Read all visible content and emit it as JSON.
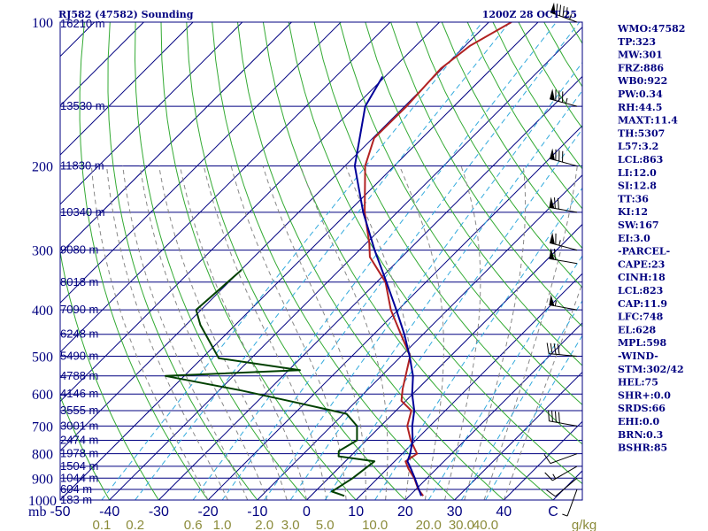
{
  "chart_data": {
    "type": "line",
    "title_left": "RJ582 (47582) Sounding",
    "title_right": "1200Z 28 OCT 25",
    "y_axis": {
      "scale": "log-pressure",
      "range_hPa": [
        1000,
        100
      ],
      "tick_labels": [
        "100",
        "200",
        "300",
        "400",
        "500",
        "600",
        "700",
        "800",
        "900",
        "1000"
      ],
      "unit_label": "mb"
    },
    "x_axis": {
      "temperature_tick_labels": [
        "-50",
        "-40",
        "-30",
        "-20",
        "-10",
        "0",
        "10",
        "20",
        "30",
        "40",
        "C"
      ],
      "mixing_ratio_labels": [
        "0.1",
        "0.2",
        "0.6",
        "1.0",
        "2.0",
        "3.0",
        "5.0",
        "10.0",
        "20.0",
        "30.0",
        "40.0",
        "g/kg"
      ]
    },
    "height_labels": [
      {
        "p": 100,
        "text": "16210 m"
      },
      {
        "p": 150,
        "text": "13530 m"
      },
      {
        "p": 200,
        "text": "11830 m"
      },
      {
        "p": 250,
        "text": "10340 m"
      },
      {
        "p": 300,
        "text": "9080 m"
      },
      {
        "p": 350,
        "text": "8018 m"
      },
      {
        "p": 400,
        "text": "7090 m"
      },
      {
        "p": 450,
        "text": "6248 m"
      },
      {
        "p": 500,
        "text": "5490 m"
      },
      {
        "p": 550,
        "text": "4788 m"
      },
      {
        "p": 600,
        "text": "4146 m"
      },
      {
        "p": 650,
        "text": "3555 m"
      },
      {
        "p": 700,
        "text": "3001 m"
      },
      {
        "p": 750,
        "text": "2474 m"
      },
      {
        "p": 800,
        "text": "1978 m"
      },
      {
        "p": 850,
        "text": "1504 m"
      },
      {
        "p": 900,
        "text": "1044 m"
      },
      {
        "p": 950,
        "text": "604 m"
      },
      {
        "p": 1000,
        "text": "183 m"
      }
    ],
    "series": [
      {
        "key": "temperature",
        "color": "#B22222",
        "points": [
          [
            100,
            -55.4
          ],
          [
            112,
            -59.0
          ],
          [
            125,
            -60.3
          ],
          [
            150,
            -59.6
          ],
          [
            175,
            -59.7
          ],
          [
            200,
            -55.9
          ],
          [
            250,
            -46.6
          ],
          [
            290,
            -39.4
          ],
          [
            310,
            -36.5
          ],
          [
            350,
            -28.2
          ],
          [
            400,
            -21.5
          ],
          [
            450,
            -14.5
          ],
          [
            500,
            -8.2
          ],
          [
            550,
            -5.1
          ],
          [
            585,
            -3.1
          ],
          [
            620,
            -0.9
          ],
          [
            650,
            3.1
          ],
          [
            700,
            5.4
          ],
          [
            750,
            9.0
          ],
          [
            800,
            13.0
          ],
          [
            830,
            12.2
          ],
          [
            860,
            14.3
          ],
          [
            900,
            17.4
          ],
          [
            950,
            20.5
          ],
          [
            980,
            22.8
          ]
        ]
      },
      {
        "key": "dewpoint",
        "color": "#004000",
        "points": [
          [
            330,
            -59.9
          ],
          [
            400,
            -61.0
          ],
          [
            430,
            -57.1
          ],
          [
            505,
            -46.6
          ],
          [
            535,
            -27.7
          ],
          [
            550,
            -53.8
          ],
          [
            590,
            -35.4
          ],
          [
            625,
            -21.9
          ],
          [
            660,
            -9.4
          ],
          [
            700,
            -4.8
          ],
          [
            750,
            -1.9
          ],
          [
            790,
            -3.4
          ],
          [
            810,
            -2.4
          ],
          [
            830,
            5.9
          ],
          [
            900,
            4.9
          ],
          [
            960,
            3.4
          ],
          [
            980,
            6.8
          ]
        ]
      },
      {
        "key": "parcel",
        "color": "#000099",
        "points": [
          [
            130,
            -70.5
          ],
          [
            150,
            -68.0
          ],
          [
            200,
            -58.0
          ],
          [
            250,
            -46.9
          ],
          [
            300,
            -36.9
          ],
          [
            350,
            -28.0
          ],
          [
            400,
            -20.4
          ],
          [
            450,
            -13.8
          ],
          [
            500,
            -8.3
          ],
          [
            550,
            -3.6
          ],
          [
            600,
            -0.1
          ],
          [
            650,
            3.7
          ],
          [
            700,
            6.4
          ],
          [
            750,
            9.4
          ],
          [
            800,
            11.6
          ],
          [
            830,
            12.6
          ],
          [
            860,
            14.8
          ],
          [
            900,
            17.5
          ],
          [
            950,
            20.6
          ],
          [
            980,
            22.4
          ]
        ]
      }
    ],
    "index_panel": [
      "WMO:47582",
      "TP:323",
      "MW:301",
      "FRZ:886",
      "WB0:922",
      "PW:0.34",
      "RH:44.5",
      "MAXT:11.4",
      "TH:5307",
      "L57:3.2",
      "LCL:863",
      "LI:12.0",
      "SI:12.8",
      "TT:36",
      "KI:12",
      "SW:167",
      "EI:3.0",
      "-PARCEL-",
      "CAPE:23",
      "CINH:18",
      "LCL:823",
      "CAP:11.9",
      "LFC:748",
      "EL:628",
      "MPL:598",
      "-WIND-",
      "STM:302/42",
      "HEL:75",
      "SHR+:0.0",
      "SRDS:66",
      "EHI:0.0",
      "BRN:0.3",
      "BSHR:85"
    ],
    "wind_barbs": [
      {
        "p": 100,
        "dir": 290,
        "spd": 95
      },
      {
        "p": 150,
        "dir": 285,
        "spd": 85
      },
      {
        "p": 200,
        "dir": 285,
        "spd": 80
      },
      {
        "p": 250,
        "dir": 280,
        "spd": 70
      },
      {
        "p": 300,
        "dir": 285,
        "spd": 65
      },
      {
        "p": 320,
        "dir": 280,
        "spd": 60
      },
      {
        "p": 400,
        "dir": 280,
        "spd": 55
      },
      {
        "p": 500,
        "dir": 275,
        "spd": 40
      },
      {
        "p": 700,
        "dir": 280,
        "spd": 40
      },
      {
        "p": 800,
        "dir": 250,
        "spd": 10
      },
      {
        "p": 850,
        "dir": 240,
        "spd": 15
      },
      {
        "p": 900,
        "dir": 230,
        "spd": 10
      },
      {
        "p": 950,
        "dir": 200,
        "spd": 5
      }
    ],
    "colors": {
      "frame": "#000080",
      "isobar": "#000080",
      "isotherm": "#000080",
      "dry_adiabat": "#33AA33",
      "moist_adiabat": "#888888",
      "mixing_ratio": "#33AADD"
    }
  }
}
